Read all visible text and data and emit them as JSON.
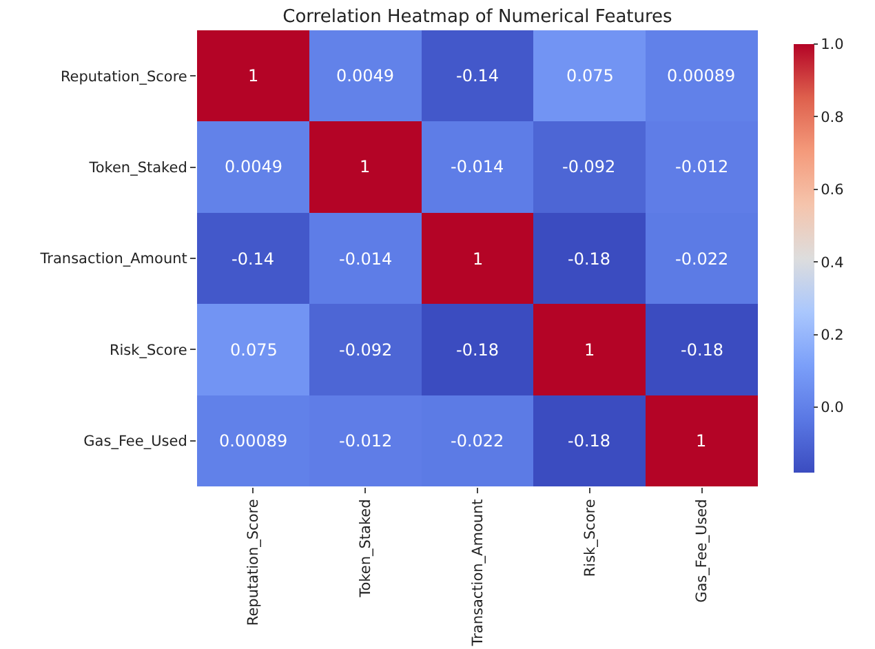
{
  "chart_data": {
    "type": "heatmap",
    "title": "Correlation Heatmap of Numerical Features",
    "categories": [
      "Reputation_Score",
      "Token_Staked",
      "Transaction_Amount",
      "Risk_Score",
      "Gas_Fee_Used"
    ],
    "y_categories": [
      "Reputation_Score",
      "Token_Staked",
      "Transaction_Amount",
      "Risk_Score",
      "Gas_Fee_Used"
    ],
    "cells": [
      [
        1,
        0.0049,
        -0.14,
        0.075,
        0.00089
      ],
      [
        0.0049,
        1,
        -0.014,
        -0.092,
        -0.012
      ],
      [
        -0.14,
        -0.014,
        1,
        -0.18,
        -0.022
      ],
      [
        0.075,
        -0.092,
        -0.18,
        1,
        -0.18
      ],
      [
        0.00089,
        -0.012,
        -0.022,
        -0.18,
        1
      ]
    ],
    "clim": [
      -0.18,
      1
    ],
    "cticks": [
      {
        "value": 0,
        "label": "0.0"
      },
      {
        "value": 0.2,
        "label": "0.2"
      },
      {
        "value": 0.4,
        "label": "0.4"
      },
      {
        "value": 0.6,
        "label": "0.6"
      },
      {
        "value": 0.8,
        "label": "0.8"
      },
      {
        "value": 1,
        "label": "1.0"
      }
    ],
    "data_labels": true
  }
}
